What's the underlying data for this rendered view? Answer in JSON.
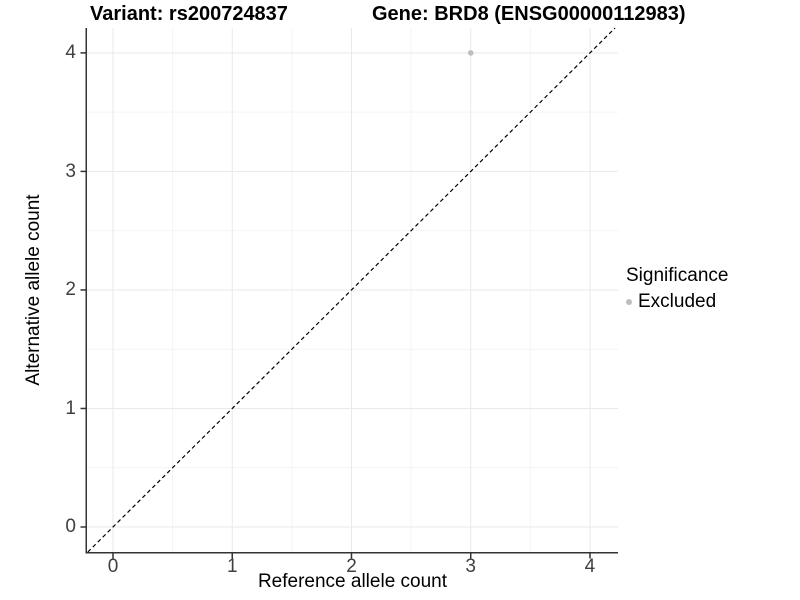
{
  "chart_data": {
    "type": "scatter",
    "titles": {
      "left": "Variant: rs200724837",
      "right": "Gene: BRD8 (ENSG00000112983)"
    },
    "xlabel": "Reference allele count",
    "ylabel": "Alternative allele count",
    "xlim": [
      -0.218,
      4.235
    ],
    "ylim": [
      -0.211,
      4.21
    ],
    "x_ticks": [
      0,
      1,
      2,
      3,
      4
    ],
    "y_ticks": [
      0,
      1,
      2,
      3,
      4
    ],
    "grid": {
      "major": true,
      "minor": true,
      "minor_step": 0.5
    },
    "identity_line": {
      "style": "dashed",
      "equation": "y = x"
    },
    "points": [
      {
        "x": 3,
        "y": 4,
        "significance": "Excluded"
      }
    ],
    "legend": {
      "title": "Significance",
      "position": "right",
      "items": [
        {
          "label": "Excluded",
          "color": "#bebebe",
          "marker": "circle"
        }
      ]
    },
    "colors": {
      "background": "#ffffff",
      "point": "#bebebe",
      "grid_major": "#e9e9e9",
      "grid_minor": "#f4f4f4",
      "axis_line": "#333333",
      "identity_line": "#000000",
      "tick_label": "#404040",
      "text": "#000000"
    }
  }
}
